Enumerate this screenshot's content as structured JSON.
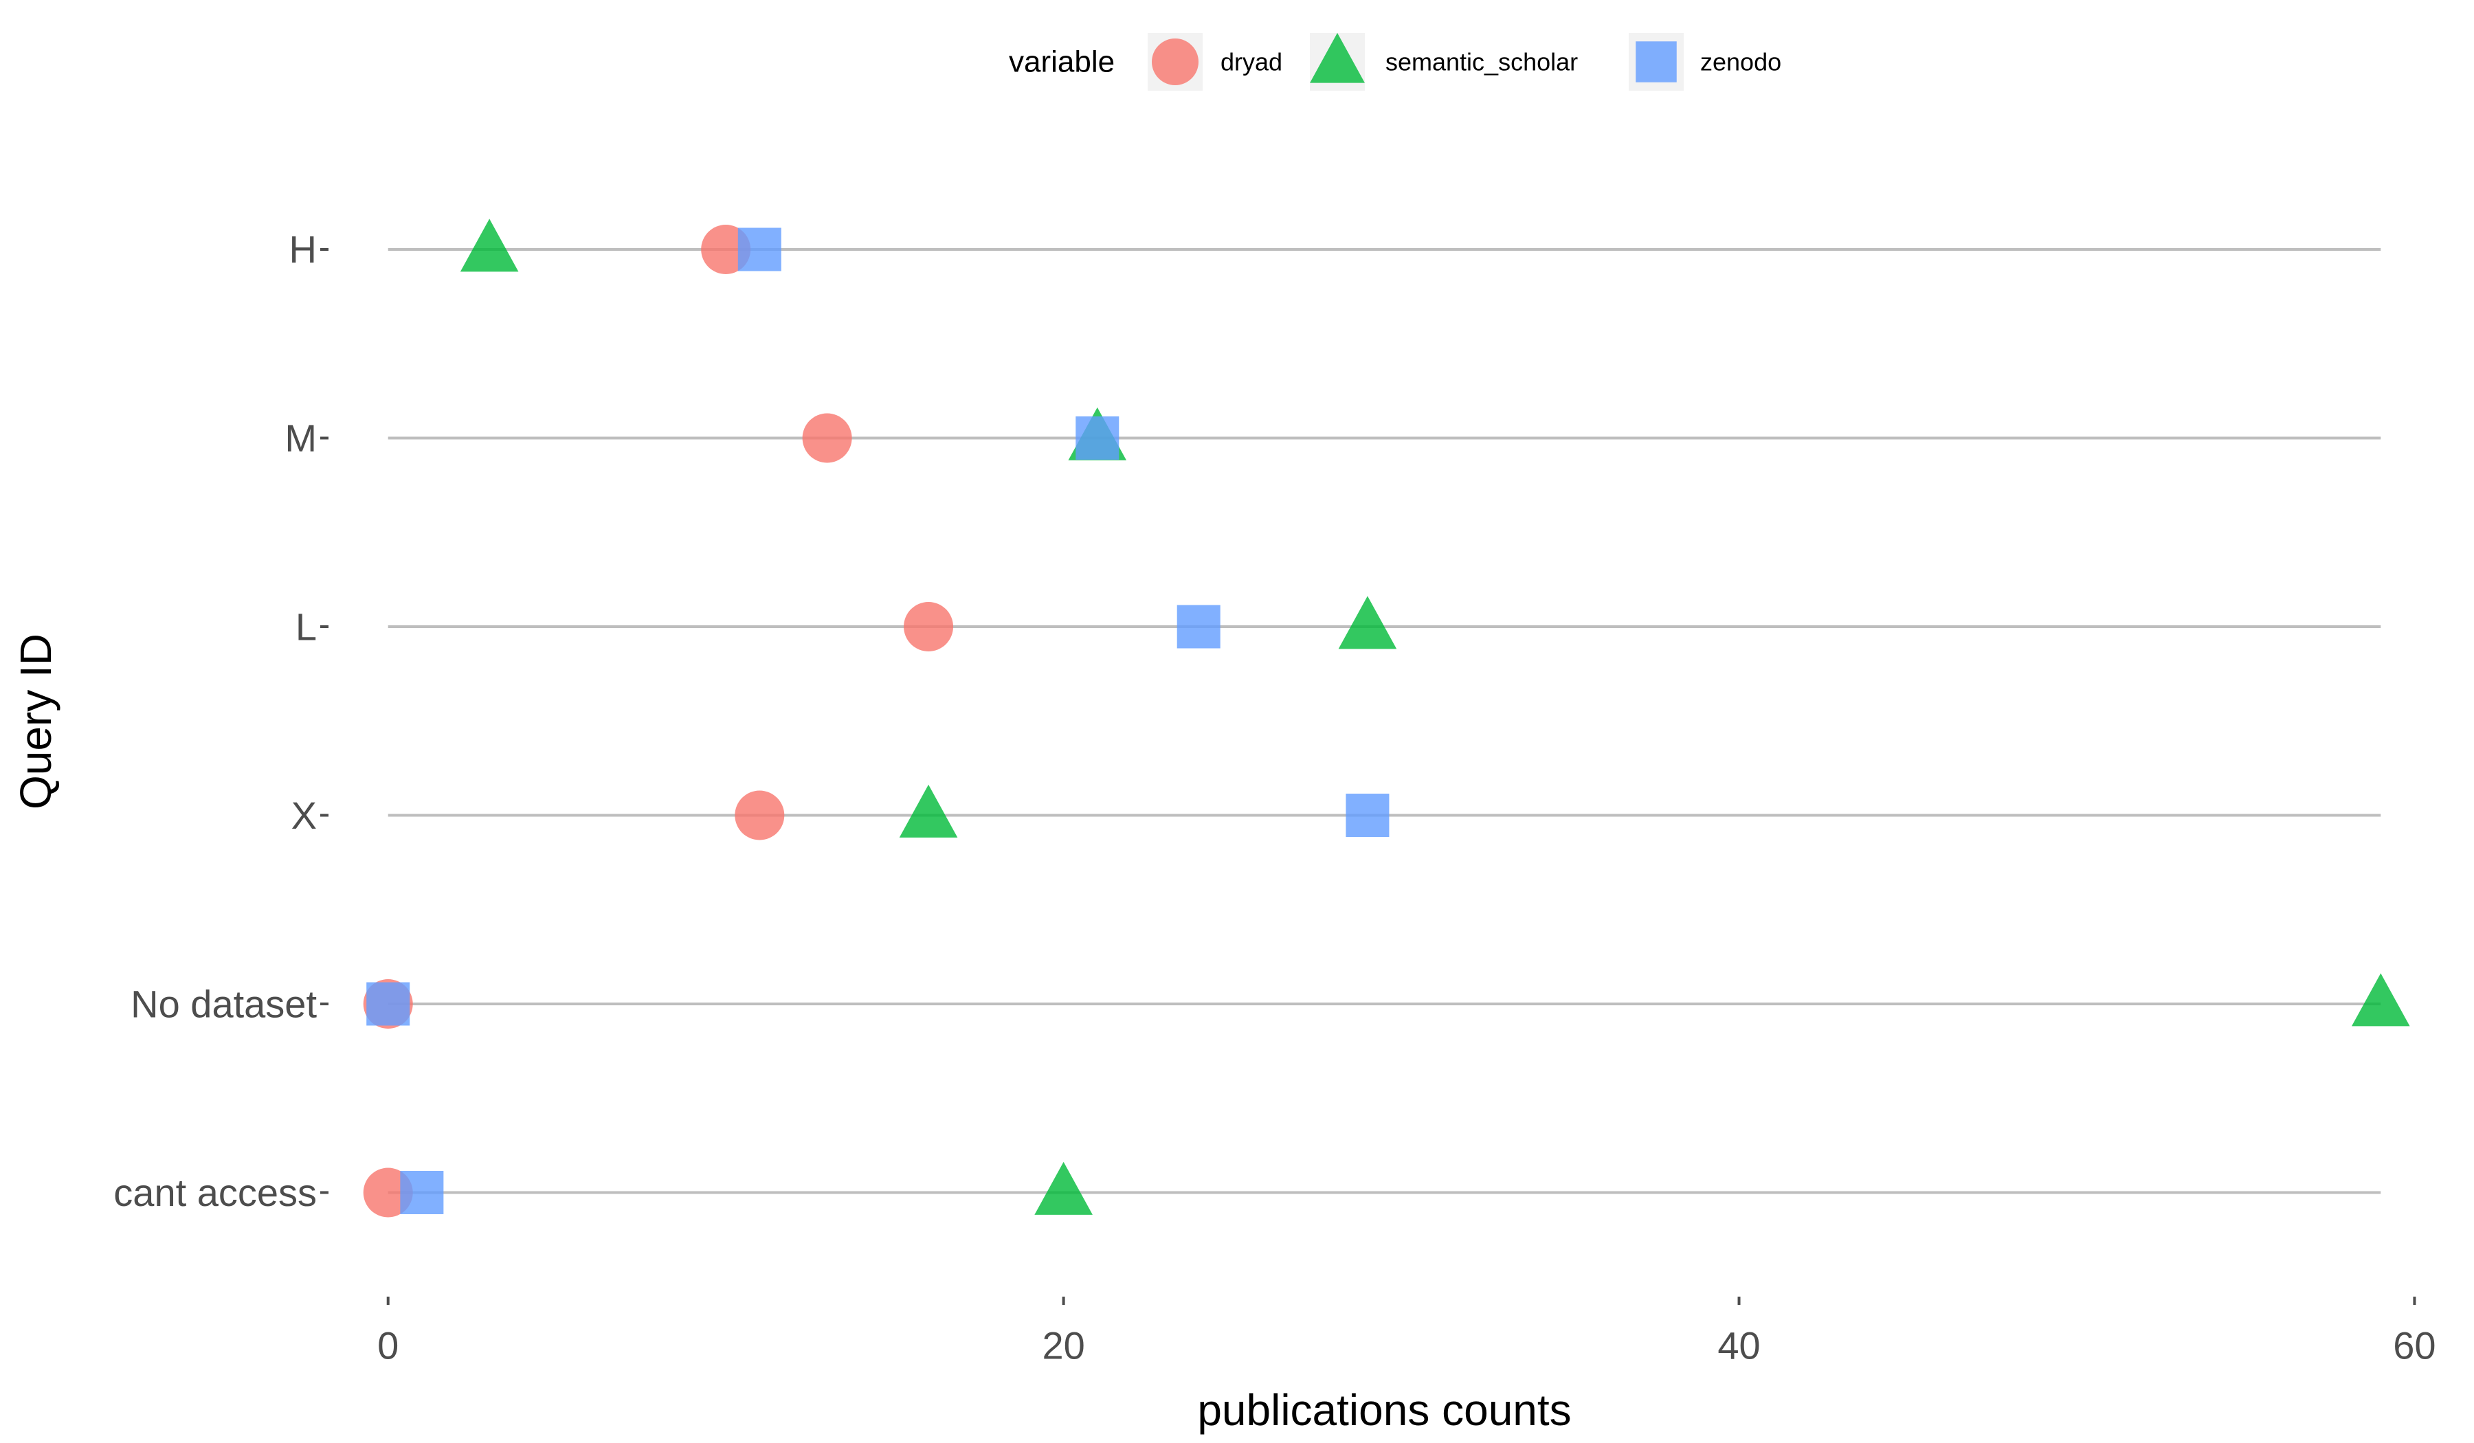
{
  "chart_data": {
    "type": "scatter",
    "orientation": "horizontal-dot-plot",
    "xlabel": "publications counts",
    "ylabel": "Query ID",
    "xlim": [
      -1.5,
      60.5
    ],
    "x_ticks": [
      0,
      20,
      40,
      60
    ],
    "categories": [
      "H",
      "M",
      "L",
      "X",
      "No dataset",
      "cant access"
    ],
    "legend": {
      "title": "variable",
      "position": "top"
    },
    "grid": false,
    "row_lines": true,
    "series": [
      {
        "name": "dryad",
        "shape": "circle",
        "color": "#F8766D",
        "values": [
          10,
          13,
          16,
          11,
          0,
          0
        ]
      },
      {
        "name": "semantic_scholar",
        "shape": "triangle",
        "color": "#00BA38",
        "values": [
          3,
          21,
          29,
          16,
          59,
          20
        ]
      },
      {
        "name": "zenodo",
        "shape": "square",
        "color": "#619CFF",
        "values": [
          11,
          21,
          24,
          29,
          0,
          1
        ]
      }
    ],
    "row_line_range": [
      0,
      59
    ]
  }
}
